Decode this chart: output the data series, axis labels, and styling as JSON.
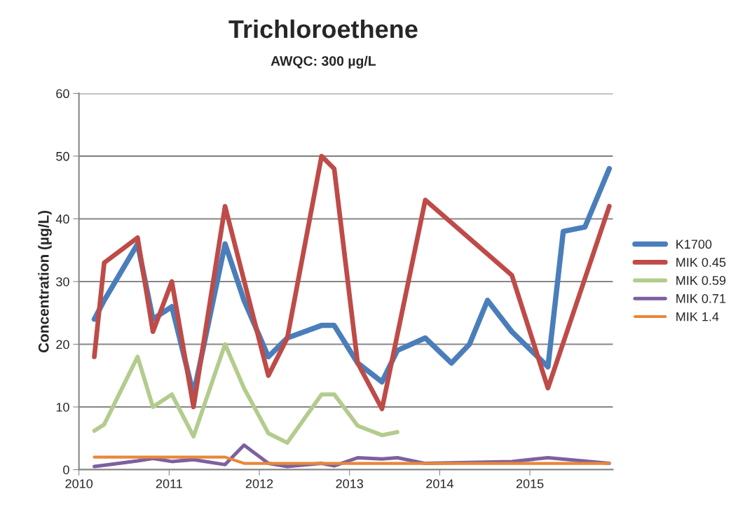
{
  "chart_data": {
    "type": "line",
    "title": "Trichloroethene",
    "subtitle": "AWQC: 300 µg/L",
    "ylabel": "Concentration (µg/L)",
    "series": [
      {
        "name": "K1700",
        "color": "#4a7ebb",
        "x": [
          2010.17,
          2010.28,
          2010.65,
          2010.82,
          2011.03,
          2011.27,
          2011.62,
          2011.83,
          2012.1,
          2012.31,
          2012.69,
          2012.83,
          2013.09,
          2013.36,
          2013.53,
          2013.84,
          2014.13,
          2014.33,
          2014.53,
          2014.8,
          2015.2,
          2015.37,
          2015.61,
          2015.88
        ],
        "values": [
          24,
          27,
          36,
          24,
          26,
          12,
          36,
          27,
          18,
          21,
          23,
          23,
          17,
          14,
          19,
          21,
          17,
          20,
          27,
          22,
          16.4,
          38,
          38.7,
          48
        ]
      },
      {
        "name": "MIK 0.45",
        "color": "#be4b48",
        "x": [
          2010.17,
          2010.28,
          2010.65,
          2010.82,
          2011.03,
          2011.27,
          2011.62,
          2012.1,
          2012.31,
          2012.69,
          2012.83,
          2013.09,
          2013.36,
          2013.84,
          2014.8,
          2015.2,
          2015.88
        ],
        "values": [
          18,
          33,
          37,
          22,
          30,
          10,
          42,
          15,
          21,
          50,
          48,
          17,
          9.7,
          43,
          31,
          13,
          42
        ]
      },
      {
        "name": "MIK 0.59",
        "color": "#b3cc8e",
        "x": [
          2010.17,
          2010.28,
          2010.65,
          2010.82,
          2011.03,
          2011.27,
          2011.62,
          2011.83,
          2012.1,
          2012.31,
          2012.69,
          2012.83,
          2013.09,
          2013.36,
          2013.53
        ],
        "values": [
          6.2,
          7.2,
          18,
          10,
          12,
          5.3,
          20,
          13,
          5.8,
          4.3,
          12,
          12,
          7,
          5.5,
          6
        ]
      },
      {
        "name": "MIK 0.71",
        "color": "#7d60a0",
        "x": [
          2010.17,
          2010.28,
          2010.65,
          2010.82,
          2011.03,
          2011.27,
          2011.62,
          2011.83,
          2012.1,
          2012.31,
          2012.69,
          2012.83,
          2013.09,
          2013.36,
          2013.53,
          2013.84,
          2014.8,
          2015.2,
          2015.88
        ],
        "values": [
          0.5,
          0.7,
          1.4,
          1.8,
          1.3,
          1.6,
          0.8,
          3.9,
          1,
          0.5,
          1,
          0.6,
          1.9,
          1.7,
          1.9,
          1,
          1.3,
          1.9,
          1
        ]
      },
      {
        "name": "MIK 1.4",
        "color": "#e8883a",
        "x": [
          2010.17,
          2010.65,
          2011.03,
          2011.62,
          2011.83,
          2012.31,
          2012.83,
          2013.36,
          2013.84,
          2014.8,
          2015.2,
          2015.88
        ],
        "values": [
          2,
          2,
          2,
          2,
          1,
          1,
          1,
          1,
          1,
          1,
          1,
          1
        ]
      }
    ],
    "xlim": [
      2010,
      2015.92
    ],
    "xticks": [
      2010,
      2011,
      2012,
      2013,
      2014,
      2015
    ],
    "ylim": [
      0,
      60
    ],
    "yticks": [
      0,
      10,
      20,
      30,
      40,
      50,
      60
    ],
    "grid": "y",
    "legend": "right",
    "marker": "none",
    "line_style": "solid"
  }
}
